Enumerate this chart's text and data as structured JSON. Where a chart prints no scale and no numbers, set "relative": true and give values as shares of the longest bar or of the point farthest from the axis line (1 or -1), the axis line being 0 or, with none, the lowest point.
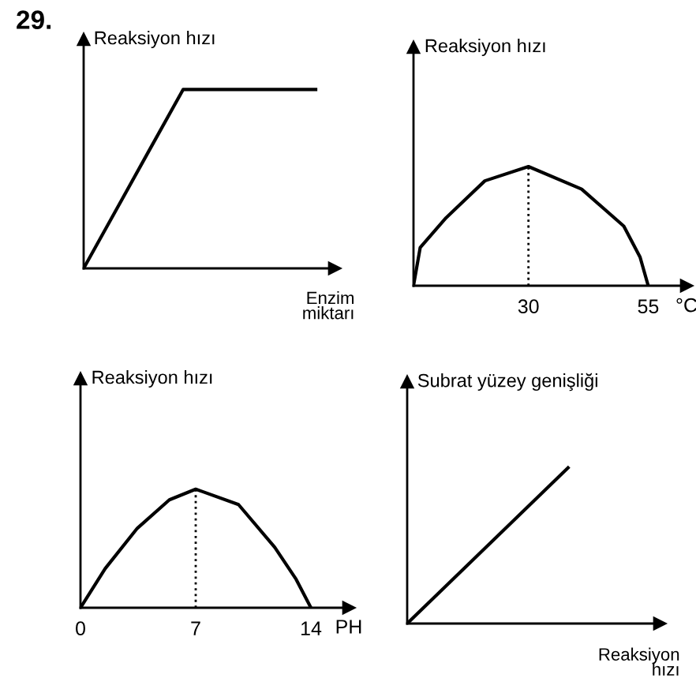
{
  "chart_data": [
    {
      "type": "line",
      "relative": true,
      "ylabel": "Reaksiyon hızı",
      "xlabel": "Enzim\nmiktarı",
      "annotations": [
        "29."
      ],
      "tick_labels": false,
      "categories": [
        null,
        null,
        null,
        null,
        null,
        null,
        null,
        null
      ],
      "series": [
        {
          "color": "#000000",
          "values": [
            0,
            0.333,
            0.667,
            1,
            1,
            1,
            1,
            1
          ]
        }
      ]
    },
    {
      "type": "line",
      "relative": true,
      "ylabel": "Reaksiyon hızı",
      "xlabel": "°C",
      "tick_labels": "x",
      "xlim": [
        6,
        63
      ],
      "xticks": [
        30,
        55
      ],
      "series": [
        {
          "color": "#000000",
          "x": [
            6,
            7.4,
            12.8,
            20.9,
            30,
            41.1,
            49.9,
            53.3,
            55
          ],
          "values": [
            0,
            0.32,
            0.57,
            0.88,
            1,
            0.81,
            0.5,
            0.24,
            0
          ]
        }
      ],
      "ref_lines": [
        {
          "axis": "x",
          "value": 30,
          "line_style": "dotted",
          "color": "#000000"
        }
      ]
    },
    {
      "type": "line",
      "relative": true,
      "ylabel": "Reaksiyon hızı",
      "xlabel": "PH",
      "tick_labels": "x",
      "xlim": [
        0,
        16.3
      ],
      "xticks": [
        0,
        7,
        14
      ],
      "series": [
        {
          "color": "#000000",
          "x": [
            0,
            1.5,
            3.45,
            5.4,
            7,
            9.6,
            11.8,
            13.1,
            14
          ],
          "values": [
            0,
            0.33,
            0.67,
            0.91,
            1,
            0.87,
            0.51,
            0.24,
            0
          ]
        }
      ],
      "ref_lines": [
        {
          "axis": "x",
          "value": 7,
          "line_style": "dotted",
          "color": "#000000"
        }
      ]
    },
    {
      "type": "line",
      "relative": true,
      "ylabel": "Subrat yüzey genişliği",
      "xlabel": "Reaksiyon\nhızı",
      "tick_labels": false,
      "categories": [
        null,
        null
      ],
      "series": [
        {
          "color": "#000000",
          "values": [
            0,
            1
          ]
        }
      ]
    }
  ]
}
